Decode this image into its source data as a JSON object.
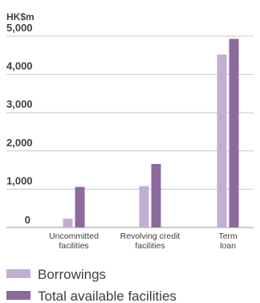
{
  "chart_data": {
    "type": "bar",
    "unit_label": "HK$m",
    "categories": [
      [
        "Uncommitted",
        "facilities"
      ],
      [
        "Revolving credit",
        "facilities"
      ],
      [
        "Term",
        "loan"
      ]
    ],
    "series": [
      {
        "name": "Borrowings",
        "color": "#c3aed3",
        "values": [
          230,
          1080,
          4520
        ]
      },
      {
        "name": "Total available facilities",
        "color": "#8c6a9e",
        "values": [
          1060,
          1660,
          4930
        ]
      }
    ],
    "yticks": [
      "5,000",
      "4,000",
      "3,000",
      "2,000",
      "1,000",
      "0"
    ],
    "ytick_values": [
      5000,
      4000,
      3000,
      2000,
      1000,
      0
    ],
    "ylim": [
      0,
      5000
    ],
    "grid": true,
    "legend_position": "bottom-left"
  }
}
